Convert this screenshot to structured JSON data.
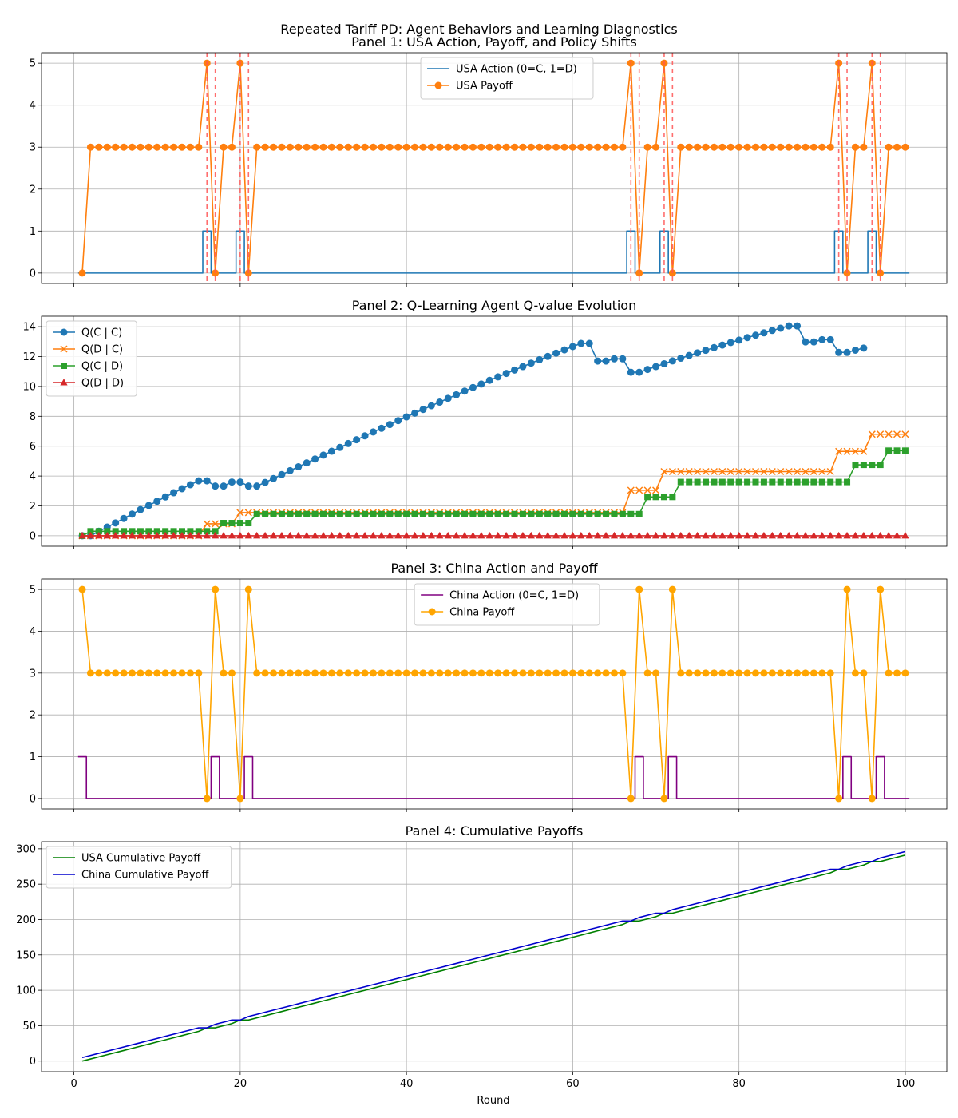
{
  "suptitle": "Repeated Tariff PD: Agent Behaviors and Learning Diagnostics",
  "x_label": "Round",
  "colors": {
    "usa_action": "#1f77b4",
    "usa_payoff": "#ff7f0e",
    "policy_shift": "#ff5555",
    "q_cc": "#1f77b4",
    "q_dc": "#ff7f0e",
    "q_cd": "#2ca02c",
    "q_dd": "#d62728",
    "china_action": "#800080",
    "china_payoff": "#ffa500",
    "usa_cum": "#008000",
    "china_cum": "#0000cd"
  },
  "chart_data": [
    {
      "type": "line",
      "title": "Panel 1: USA Action, Payoff, and Policy Shifts",
      "xlim": [
        -3.9,
        105
      ],
      "ylim": [
        -0.25,
        5.25
      ],
      "xticks": [
        0,
        20,
        40,
        60,
        80,
        100
      ],
      "yticks": [
        0,
        1,
        2,
        3,
        4,
        5
      ],
      "legend_loc": "upper-center",
      "series": [
        {
          "name": "USA Action (0=C, 1=D)",
          "kind": "action",
          "ones": [
            16,
            20,
            67,
            71,
            92,
            96
          ]
        },
        {
          "name": "USA Payoff",
          "kind": "payoff",
          "base": 3,
          "first": 0,
          "fives": [
            16,
            20,
            67,
            71,
            92,
            96
          ],
          "zeros": [
            17,
            21,
            68,
            72,
            93,
            97
          ]
        }
      ],
      "vlines": [
        16,
        17,
        20,
        21,
        67,
        68,
        71,
        72,
        92,
        93,
        96,
        97
      ]
    },
    {
      "type": "line",
      "title": "Panel 2: Q-Learning Agent Q-value Evolution",
      "xlim": [
        -3.9,
        105
      ],
      "ylim": [
        -0.7,
        14.7
      ],
      "xticks": [
        0,
        20,
        40,
        60,
        80,
        100
      ],
      "yticks": [
        0,
        2,
        4,
        6,
        8,
        10,
        12,
        14
      ],
      "legend_loc": "upper-left",
      "series": [
        {
          "name": "Q(C | C)",
          "marker": "circle",
          "points": [
            [
              1,
              0
            ],
            [
              2,
              0
            ],
            [
              3,
              0.3
            ],
            [
              4,
              0.58
            ],
            [
              5,
              0.86
            ],
            [
              6,
              1.16
            ],
            [
              7,
              1.45
            ],
            [
              8,
              1.75
            ],
            [
              9,
              2.03
            ],
            [
              10,
              2.31
            ],
            [
              11,
              2.6
            ],
            [
              12,
              2.88
            ],
            [
              13,
              3.15
            ],
            [
              14,
              3.42
            ],
            [
              15,
              3.68
            ],
            [
              16,
              3.68
            ],
            [
              17,
              3.33
            ],
            [
              18,
              3.33
            ],
            [
              19,
              3.6
            ],
            [
              20,
              3.6
            ],
            [
              21,
              3.33
            ],
            [
              22,
              3.33
            ],
            [
              23,
              3.57
            ],
            [
              24,
              3.83
            ],
            [
              25,
              4.1
            ],
            [
              26,
              4.36
            ],
            [
              27,
              4.62
            ],
            [
              28,
              4.88
            ],
            [
              29,
              5.14
            ],
            [
              30,
              5.4
            ],
            [
              31,
              5.66
            ],
            [
              32,
              5.92
            ],
            [
              33,
              6.18
            ],
            [
              34,
              6.43
            ],
            [
              35,
              6.69
            ],
            [
              36,
              6.95
            ],
            [
              37,
              7.2
            ],
            [
              38,
              7.45
            ],
            [
              39,
              7.71
            ],
            [
              40,
              7.96
            ],
            [
              41,
              8.21
            ],
            [
              42,
              8.46
            ],
            [
              43,
              8.71
            ],
            [
              44,
              8.95
            ],
            [
              45,
              9.2
            ],
            [
              46,
              9.44
            ],
            [
              47,
              9.69
            ],
            [
              48,
              9.93
            ],
            [
              49,
              10.16
            ],
            [
              50,
              10.41
            ],
            [
              51,
              10.64
            ],
            [
              52,
              10.87
            ],
            [
              53,
              11.1
            ],
            [
              54,
              11.33
            ],
            [
              55,
              11.56
            ],
            [
              56,
              11.79
            ],
            [
              57,
              12.01
            ],
            [
              58,
              12.23
            ],
            [
              59,
              12.45
            ],
            [
              60,
              12.67
            ],
            [
              61,
              12.88
            ],
            [
              62,
              12.88
            ],
            [
              63,
              11.7
            ],
            [
              64,
              11.7
            ],
            [
              65,
              11.85
            ],
            [
              66,
              11.85
            ],
            [
              67,
              10.95
            ],
            [
              68,
              10.95
            ],
            [
              69,
              11.14
            ],
            [
              70,
              11.33
            ],
            [
              71,
              11.52
            ],
            [
              72,
              11.71
            ],
            [
              73,
              11.89
            ],
            [
              74,
              12.07
            ],
            [
              75,
              12.25
            ],
            [
              76,
              12.42
            ],
            [
              77,
              12.6
            ],
            [
              78,
              12.77
            ],
            [
              79,
              12.94
            ],
            [
              80,
              13.1
            ],
            [
              81,
              13.27
            ],
            [
              82,
              13.43
            ],
            [
              83,
              13.59
            ],
            [
              84,
              13.75
            ],
            [
              85,
              13.9
            ],
            [
              86,
              14.05
            ],
            [
              87,
              14.05
            ],
            [
              88,
              12.98
            ],
            [
              89,
              12.98
            ],
            [
              90,
              13.13
            ],
            [
              91,
              13.13
            ],
            [
              92,
              12.28
            ],
            [
              93,
              12.28
            ],
            [
              94,
              12.43
            ],
            [
              95,
              12.57
            ]
          ]
        },
        {
          "name": "Q(D | C)",
          "marker": "x",
          "steps": [
            [
              1,
              0
            ],
            [
              16,
              0.8
            ],
            [
              20,
              1.55
            ],
            [
              67,
              3.05
            ],
            [
              71,
              4.3
            ],
            [
              92,
              5.65
            ],
            [
              96,
              6.8
            ]
          ]
        },
        {
          "name": "Q(C | D)",
          "marker": "square",
          "steps": [
            [
              1,
              0
            ],
            [
              2,
              0.3
            ],
            [
              18,
              0.85
            ],
            [
              22,
              1.45
            ],
            [
              69,
              2.6
            ],
            [
              73,
              3.6
            ],
            [
              94,
              4.75
            ],
            [
              98,
              5.7
            ]
          ]
        },
        {
          "name": "Q(D | D)",
          "marker": "triangle",
          "steps": [
            [
              1,
              0
            ]
          ]
        }
      ]
    },
    {
      "type": "line",
      "title": "Panel 3: China  Action and Payoff",
      "xlim": [
        -3.9,
        105
      ],
      "ylim": [
        -0.25,
        5.25
      ],
      "xticks": [
        0,
        20,
        40,
        60,
        80,
        100
      ],
      "yticks": [
        0,
        1,
        2,
        3,
        4,
        5
      ],
      "legend_loc": "upper-center",
      "series": [
        {
          "name": "China Action (0=C, 1=D)",
          "kind": "action",
          "ones": [
            1,
            17,
            21,
            68,
            72,
            93,
            97
          ]
        },
        {
          "name": "China Payoff",
          "kind": "payoff",
          "base": 3,
          "first": 5,
          "fives": [
            17,
            21,
            68,
            72,
            93,
            97
          ],
          "zeros": [
            16,
            20,
            67,
            71,
            92,
            96
          ]
        }
      ]
    },
    {
      "type": "line",
      "title": "Panel 4: Cumulative Payoffs",
      "xlabel": "Round",
      "xlim": [
        -3.9,
        105
      ],
      "ylim": [
        -15,
        310
      ],
      "xticks": [
        0,
        20,
        40,
        60,
        80,
        100
      ],
      "yticks": [
        0,
        50,
        100,
        150,
        200,
        250,
        300
      ],
      "legend_loc": "upper-left",
      "series": [
        {
          "name": "USA Cumulative Payoff",
          "kind": "cumulative",
          "source_panel": 0
        },
        {
          "name": "China Cumulative Payoff",
          "kind": "cumulative",
          "source_panel": 2
        }
      ]
    }
  ]
}
